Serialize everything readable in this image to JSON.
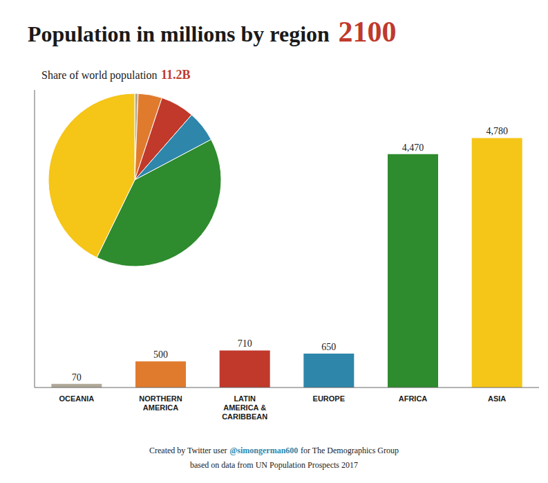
{
  "chart_data": [
    {
      "type": "bar",
      "title": [
        {
          "text": "Population in millions by region"
        },
        {
          "text": "2100",
          "color": "#c0392b"
        }
      ],
      "categories": [
        "OCEANIA",
        "NORTHERN\nAMERICA",
        "LATIN\nAMERICA &\nCARIBBEAN",
        "EUROPE",
        "AFRICA",
        "ASIA"
      ],
      "values": [
        70,
        500,
        710,
        650,
        4470,
        4780
      ],
      "value_labels": [
        "70",
        "500",
        "710",
        "650",
        "4,470",
        "4,780"
      ],
      "colors": [
        "#b0a898",
        "#e07b2e",
        "#c0392b",
        "#2e86ab",
        "#2e8b2e",
        "#f5c518"
      ],
      "ylim": [
        0,
        5700
      ],
      "tick_labels": "x",
      "data_labels": true,
      "grid": false,
      "annotations": [
        [
          {
            "text": "Created by Twitter user"
          },
          {
            "text": "@simongerman600",
            "color": "#2e86ab"
          },
          {
            "text": "for The Demographics Group"
          }
        ],
        [
          {
            "text": "based on data from UN Population Prospects 2017"
          }
        ]
      ]
    },
    {
      "type": "pie",
      "subtitle": [
        {
          "text": "Share of world population"
        },
        {
          "text": "11.2B",
          "color": "#c0392b"
        }
      ],
      "values": [
        70,
        500,
        710,
        650,
        4470,
        4780
      ],
      "colors": [
        "#b0a898",
        "#e07b2e",
        "#c0392b",
        "#2e86ab",
        "#2e8b2e",
        "#f5c518"
      ]
    }
  ]
}
